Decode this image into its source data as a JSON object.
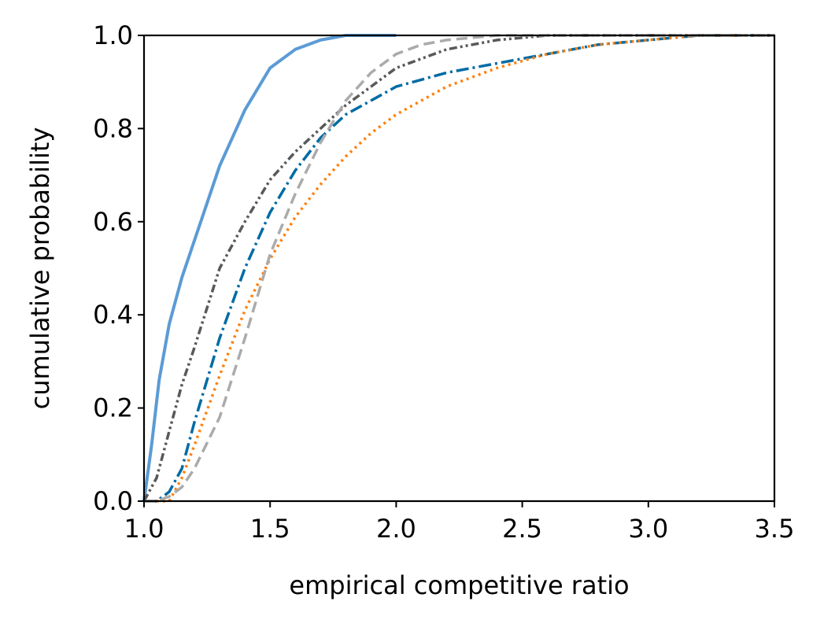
{
  "chart_data": {
    "type": "line",
    "title": "",
    "xlabel": "empirical competitive ratio",
    "ylabel": "cumulative probability",
    "xlim": [
      1.0,
      3.5
    ],
    "ylim": [
      0.0,
      1.0
    ],
    "xticks": [
      "1.0",
      "1.5",
      "2.0",
      "2.5",
      "3.0",
      "3.5"
    ],
    "yticks": [
      "0.0",
      "0.2",
      "0.4",
      "0.6",
      "0.8",
      "1.0"
    ],
    "grid": false,
    "legend": "none",
    "series": [
      {
        "color": "#5b9bd5",
        "dash": "solid",
        "x": [
          1.0,
          1.03,
          1.06,
          1.1,
          1.15,
          1.2,
          1.3,
          1.4,
          1.5,
          1.6,
          1.7,
          1.8,
          1.9,
          2.0
        ],
        "y": [
          0.0,
          0.12,
          0.26,
          0.38,
          0.48,
          0.56,
          0.72,
          0.84,
          0.93,
          0.97,
          0.99,
          1.0,
          1.0,
          1.0
        ]
      },
      {
        "color": "#006ba4",
        "dash": "dashdot",
        "x": [
          1.0,
          1.05,
          1.1,
          1.15,
          1.2,
          1.3,
          1.4,
          1.5,
          1.6,
          1.7,
          1.8,
          1.9,
          2.0,
          2.2,
          2.4,
          2.6,
          2.8,
          3.0,
          3.2,
          3.5
        ],
        "y": [
          0.0,
          0.0,
          0.02,
          0.07,
          0.17,
          0.35,
          0.5,
          0.62,
          0.71,
          0.78,
          0.83,
          0.86,
          0.89,
          0.92,
          0.94,
          0.96,
          0.98,
          0.99,
          1.0,
          1.0
        ]
      },
      {
        "color": "#ff800e",
        "dash": "dotted",
        "x": [
          1.0,
          1.1,
          1.15,
          1.2,
          1.3,
          1.4,
          1.5,
          1.6,
          1.7,
          1.8,
          1.9,
          2.0,
          2.2,
          2.4,
          2.6,
          2.8,
          3.0,
          3.2,
          3.5
        ],
        "y": [
          0.0,
          0.0,
          0.05,
          0.12,
          0.27,
          0.41,
          0.52,
          0.61,
          0.68,
          0.74,
          0.79,
          0.83,
          0.89,
          0.93,
          0.96,
          0.98,
          0.99,
          1.0,
          1.0
        ]
      },
      {
        "color": "#595959",
        "dash": "dashdotdot",
        "x": [
          1.0,
          1.05,
          1.1,
          1.15,
          1.2,
          1.3,
          1.4,
          1.5,
          1.6,
          1.7,
          1.8,
          1.9,
          2.0,
          2.2,
          2.4,
          2.6,
          2.8,
          3.0,
          3.5
        ],
        "y": [
          0.0,
          0.05,
          0.15,
          0.25,
          0.33,
          0.5,
          0.6,
          0.69,
          0.75,
          0.8,
          0.85,
          0.89,
          0.93,
          0.97,
          0.99,
          1.0,
          1.0,
          1.0,
          1.0
        ]
      },
      {
        "color": "#ababab",
        "dash": "dashed",
        "x": [
          1.0,
          1.05,
          1.1,
          1.15,
          1.2,
          1.3,
          1.4,
          1.5,
          1.6,
          1.7,
          1.8,
          1.9,
          2.0,
          2.1,
          2.2,
          2.4,
          2.6,
          3.0,
          3.5
        ],
        "y": [
          0.0,
          0.0,
          0.01,
          0.03,
          0.07,
          0.18,
          0.35,
          0.53,
          0.66,
          0.77,
          0.86,
          0.92,
          0.96,
          0.98,
          0.99,
          1.0,
          1.0,
          1.0,
          1.0
        ]
      }
    ]
  }
}
